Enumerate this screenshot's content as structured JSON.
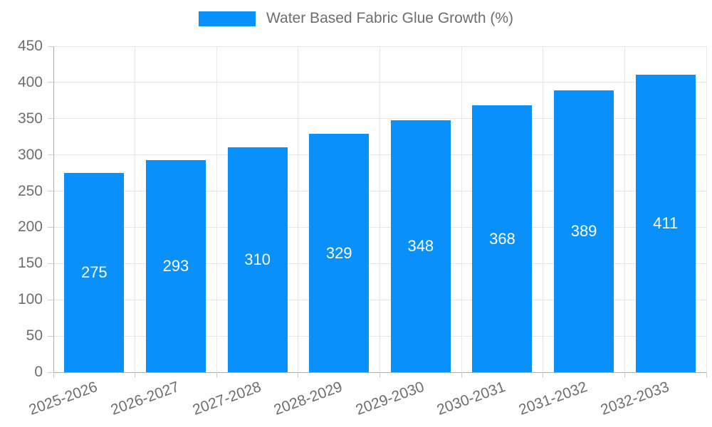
{
  "chart_data": {
    "type": "bar",
    "title": "Water Based Fabric Glue Growth (%)",
    "categories": [
      "2025-2026",
      "2026-2027",
      "2027-2028",
      "2028-2029",
      "2029-2030",
      "2030-2031",
      "2031-2032",
      "2032-2033"
    ],
    "values": [
      275,
      293,
      310,
      329,
      348,
      368,
      389,
      411
    ],
    "xlabel": "",
    "ylabel": "",
    "ylim": [
      0,
      450
    ],
    "ytick_step": 50,
    "yticks": [
      0,
      50,
      100,
      150,
      200,
      250,
      300,
      350,
      400,
      450
    ],
    "grid": true,
    "legend_position": "top",
    "bar_color": "#0a90fb",
    "value_label_color": "#ffffff",
    "axis_text_color": "#6e6e6e",
    "gridline_color": "#e7e7e7",
    "axis_line_color": "#ababab"
  },
  "legend": {
    "label": "Water Based Fabric Glue Growth (%)"
  }
}
